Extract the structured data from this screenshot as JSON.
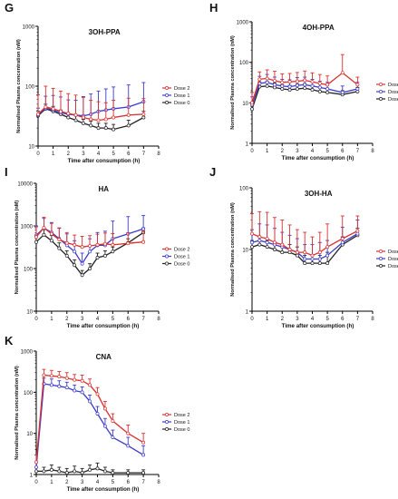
{
  "chart_data": [
    {
      "panel_letter": "G",
      "type": "line",
      "title": "3OH-PPA",
      "xlabel": "Time after consumption (h)",
      "ylabel": "Normalised Plasma concentration (nM)",
      "y_scale": "log",
      "ylim": [
        10,
        1000
      ],
      "yticks": [
        "10",
        "100",
        "1000"
      ],
      "xlim": [
        0,
        8
      ],
      "xticks": [
        "0",
        "1",
        "2",
        "3",
        "4",
        "5",
        "6",
        "7",
        "8"
      ],
      "legend_position": "right",
      "x": [
        0,
        0.5,
        1,
        1.5,
        2,
        2.5,
        3,
        3.5,
        4,
        4.5,
        5,
        6,
        7
      ],
      "series": [
        {
          "name": "Dose 2",
          "color": "#d93030",
          "values": [
            34,
            45,
            42,
            38,
            35,
            33,
            30,
            28,
            27,
            28,
            30,
            33,
            34
          ],
          "err": [
            38,
            55,
            50,
            45,
            40,
            38,
            35,
            30,
            28,
            25,
            28,
            30,
            28
          ]
        },
        {
          "name": "Dose 1",
          "color": "#3a3acc",
          "values": [
            33,
            43,
            40,
            36,
            34,
            33,
            32,
            34,
            38,
            40,
            42,
            45,
            55
          ],
          "err": [
            10,
            25,
            30,
            30,
            25,
            25,
            35,
            40,
            45,
            50,
            55,
            60,
            60
          ]
        },
        {
          "name": "Dose 0",
          "color": "#222222",
          "values": [
            32,
            42,
            38,
            34,
            30,
            27,
            24,
            22,
            20,
            20,
            19,
            22,
            30
          ],
          "err": [
            6,
            8,
            8,
            6,
            5,
            5,
            4,
            4,
            4,
            4,
            4,
            5,
            8
          ]
        }
      ]
    },
    {
      "panel_letter": "H",
      "type": "line",
      "title": "4OH-PPA",
      "xlabel": "Time after consumption (h)",
      "ylabel": "Normalised Plasma concentration (nM)",
      "y_scale": "log",
      "ylim": [
        1,
        1000
      ],
      "yticks": [
        "1",
        "10",
        "100",
        "1000"
      ],
      "xlim": [
        0,
        8
      ],
      "xticks": [
        "0",
        "1",
        "2",
        "3",
        "4",
        "5",
        "6",
        "7",
        "8"
      ],
      "legend_position": "right",
      "x": [
        0,
        0.5,
        1,
        1.5,
        2,
        2.5,
        3,
        3.5,
        4,
        4.5,
        5,
        6,
        7
      ],
      "series": [
        {
          "name": "Dose 2",
          "color": "#d93030",
          "values": [
            10,
            38,
            40,
            35,
            32,
            33,
            34,
            36,
            33,
            30,
            28,
            55,
            28
          ],
          "err": [
            8,
            20,
            25,
            25,
            20,
            20,
            22,
            25,
            22,
            20,
            18,
            100,
            15
          ]
        },
        {
          "name": "Dose 1",
          "color": "#3a3acc",
          "values": [
            9,
            30,
            32,
            28,
            26,
            25,
            27,
            28,
            26,
            24,
            22,
            18,
            22
          ],
          "err": [
            5,
            15,
            18,
            15,
            12,
            12,
            15,
            15,
            12,
            10,
            10,
            8,
            10
          ]
        },
        {
          "name": "Dose 0",
          "color": "#222222",
          "values": [
            7,
            25,
            26,
            24,
            22,
            21,
            22,
            23,
            21,
            19,
            18,
            16,
            19
          ],
          "err": [
            3,
            8,
            8,
            7,
            6,
            6,
            7,
            7,
            6,
            5,
            5,
            4,
            5
          ]
        }
      ]
    },
    {
      "panel_letter": "I",
      "type": "line",
      "title": "HA",
      "xlabel": "Time after consumption (h)",
      "ylabel": "Normalised Plasma concentration (nM)",
      "y_scale": "log",
      "ylim": [
        10,
        10000
      ],
      "yticks": [
        "10",
        "100",
        "1000",
        "10000"
      ],
      "xlim": [
        0,
        8
      ],
      "xticks": [
        "0",
        "1",
        "2",
        "3",
        "4",
        "5",
        "6",
        "7",
        "8"
      ],
      "legend_position": "right",
      "x": [
        0,
        0.5,
        1,
        1.5,
        2,
        2.5,
        3,
        3.5,
        4,
        4.5,
        5,
        6,
        7
      ],
      "series": [
        {
          "name": "Dose 2",
          "color": "#d93030",
          "values": [
            550,
            900,
            650,
            480,
            400,
            360,
            320,
            340,
            360,
            380,
            360,
            390,
            420
          ],
          "err": [
            400,
            700,
            500,
            400,
            300,
            250,
            250,
            250,
            280,
            300,
            300,
            300,
            350
          ]
        },
        {
          "name": "Dose 1",
          "color": "#3a3acc",
          "values": [
            600,
            900,
            700,
            500,
            350,
            250,
            130,
            250,
            350,
            350,
            500,
            650,
            850
          ],
          "err": [
            400,
            600,
            500,
            400,
            300,
            200,
            100,
            250,
            350,
            400,
            800,
            1000,
            900
          ]
        },
        {
          "name": "Dose 0",
          "color": "#222222",
          "values": [
            420,
            620,
            450,
            300,
            200,
            120,
            70,
            100,
            180,
            200,
            250,
            400,
            700
          ],
          "err": [
            150,
            200,
            150,
            100,
            60,
            40,
            20,
            30,
            50,
            60,
            70,
            100,
            200
          ]
        }
      ]
    },
    {
      "panel_letter": "J",
      "type": "line",
      "title": "3OH-HA",
      "xlabel": "Time after consumption (h)",
      "ylabel": "Normalised Plasma concentration (nM)",
      "y_scale": "log",
      "ylim": [
        1,
        100
      ],
      "yticks": [
        "1",
        "10",
        "100"
      ],
      "xlim": [
        0,
        8
      ],
      "xticks": [
        "0",
        "1",
        "2",
        "3",
        "4",
        "5",
        "6",
        "7",
        "8"
      ],
      "legend_position": "right",
      "x": [
        0,
        0.5,
        1,
        1.5,
        2,
        2.5,
        3,
        3.5,
        4,
        4.5,
        5,
        6,
        7
      ],
      "series": [
        {
          "name": "Dose 2",
          "color": "#d93030",
          "values": [
            18,
            16,
            15,
            13,
            12,
            10,
            9,
            9,
            8,
            9,
            11,
            15,
            20
          ],
          "err": [
            20,
            25,
            25,
            20,
            18,
            15,
            12,
            10,
            8,
            10,
            15,
            20,
            15
          ]
        },
        {
          "name": "Dose 1",
          "color": "#3a3acc",
          "values": [
            13,
            14,
            13,
            12,
            11,
            10,
            9,
            7,
            7,
            7,
            8,
            13,
            18
          ],
          "err": [
            8,
            12,
            12,
            10,
            8,
            7,
            6,
            5,
            5,
            6,
            6,
            10,
            12
          ]
        },
        {
          "name": "Dose 0",
          "color": "#222222",
          "values": [
            11,
            12,
            11,
            10,
            9,
            9,
            8,
            6,
            6,
            6,
            6,
            12,
            17
          ],
          "err": [
            3,
            4,
            3,
            3,
            3,
            3,
            3,
            2,
            2,
            2,
            3,
            4,
            5
          ]
        }
      ]
    },
    {
      "panel_letter": "K",
      "type": "line",
      "title": "CNA",
      "xlabel": "Time after consumption (h)",
      "ylabel": "Normalised Plasma concentration (nM)",
      "y_scale": "log",
      "ylim": [
        1,
        1000
      ],
      "yticks": [
        "1",
        "10",
        "100",
        "1000"
      ],
      "xlim": [
        0,
        8
      ],
      "xticks": [
        "0",
        "1",
        "2",
        "3",
        "4",
        "5",
        "6",
        "7",
        "8"
      ],
      "legend_position": "right",
      "x": [
        0,
        0.5,
        1,
        1.5,
        2,
        2.5,
        3,
        3.5,
        4,
        4.5,
        5,
        6,
        7
      ],
      "series": [
        {
          "name": "Dose 2",
          "color": "#d93030",
          "values": [
            2,
            260,
            250,
            240,
            220,
            200,
            190,
            150,
            90,
            40,
            20,
            10,
            6
          ],
          "err": [
            1,
            100,
            90,
            80,
            80,
            70,
            70,
            60,
            40,
            20,
            10,
            6,
            4
          ]
        },
        {
          "name": "Dose 1",
          "color": "#3a3acc",
          "values": [
            1.5,
            160,
            150,
            140,
            130,
            110,
            100,
            60,
            30,
            15,
            8,
            5,
            3
          ],
          "err": [
            0.5,
            60,
            60,
            50,
            45,
            40,
            35,
            25,
            15,
            8,
            4,
            3,
            2
          ]
        },
        {
          "name": "Dose 0",
          "color": "#222222",
          "values": [
            1.2,
            1.2,
            1.3,
            1.2,
            1.1,
            1.2,
            1.1,
            1.3,
            1.4,
            1.2,
            1.1,
            1.1,
            1.1
          ],
          "err": [
            0.3,
            0.3,
            0.4,
            0.3,
            0.3,
            0.4,
            0.3,
            0.4,
            0.5,
            0.3,
            0.2,
            0.2,
            0.2
          ]
        }
      ]
    }
  ]
}
